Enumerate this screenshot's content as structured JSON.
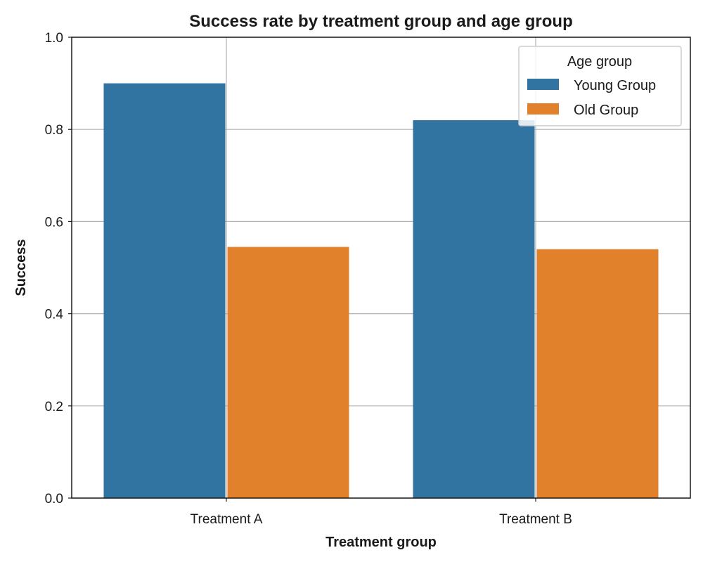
{
  "chart_data": {
    "type": "bar",
    "title": "Success rate by treatment group and age group",
    "xlabel": "Treatment group",
    "ylabel": "Success",
    "categories": [
      "Treatment A",
      "Treatment B"
    ],
    "series": [
      {
        "name": "Young Group",
        "color": "#3274a1",
        "values": [
          0.9,
          0.82
        ]
      },
      {
        "name": "Old Group",
        "color": "#e1812c",
        "values": [
          0.545,
          0.54
        ]
      }
    ],
    "ylim": [
      0,
      1.0
    ],
    "yticks": [
      "0.0",
      "0.2",
      "0.4",
      "0.6",
      "0.8",
      "1.0"
    ],
    "ytick_values": [
      0,
      0.2,
      0.4,
      0.6,
      0.8,
      1.0
    ],
    "grid": true,
    "legend": {
      "title": "Age group",
      "placement": "top-right"
    }
  }
}
